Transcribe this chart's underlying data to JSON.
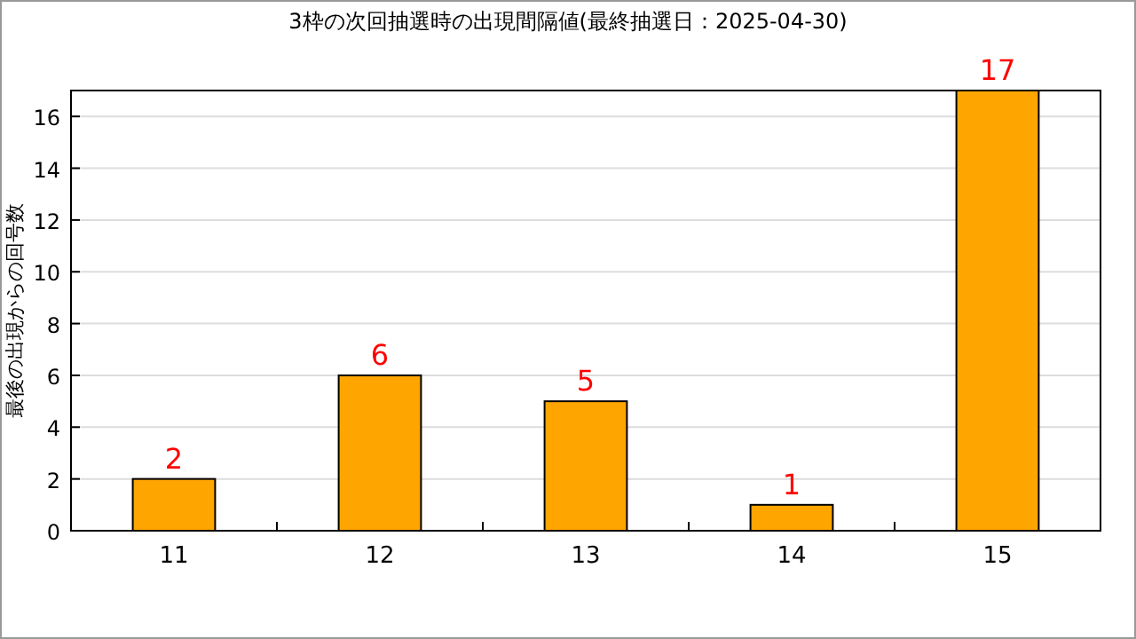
{
  "chart_data": {
    "type": "bar",
    "title": "3枠の次回抽選時の出現間隔値(最終抽選日：2025-04-30)",
    "ylabel": "最後の出現からの回号数",
    "categories": [
      "11",
      "12",
      "13",
      "14",
      "15"
    ],
    "values": [
      2,
      6,
      5,
      1,
      17
    ],
    "color": "#ffa500",
    "ylim": [
      0,
      17
    ],
    "yticks": [
      0,
      2,
      4,
      6,
      8,
      10,
      12,
      14,
      16
    ],
    "grid": "y",
    "data_labels": true
  }
}
